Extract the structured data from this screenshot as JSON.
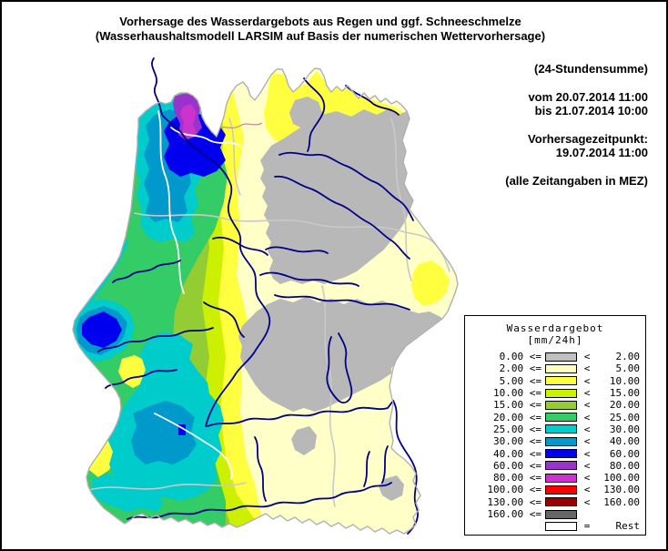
{
  "title": {
    "line1": "Vorhersage des Wasserdargebots aus Regen und ggf. Schneeschmelze",
    "line2": "(Wasserhaushaltsmodell LARSIM auf Basis der numerischen Wettervorhersage)"
  },
  "info": {
    "sum": "(24-Stundensumme)",
    "from": "vom 20.07.2014 11:00",
    "to": "bis 21.07.2014 10:00",
    "forecast_label": "Vorhersagezeitpunkt:",
    "forecast_time": "19.07.2014 11:00",
    "timezone_note": "(alle Zeitangaben in MEZ)"
  },
  "legend": {
    "title": "Wasserdargebot",
    "unit": "[mm/24h]",
    "rows": [
      {
        "left": "0.00 <=",
        "color": "#c0c0c0",
        "op": "<",
        "right": "2.00"
      },
      {
        "left": "2.00 <=",
        "color": "#ffffc0",
        "op": "<",
        "right": "5.00"
      },
      {
        "left": "5.00 <=",
        "color": "#ffff40",
        "op": "<",
        "right": "10.00"
      },
      {
        "left": "10.00 <=",
        "color": "#ccf000",
        "op": "<",
        "right": "15.00"
      },
      {
        "left": "15.00 <=",
        "color": "#94cc33",
        "op": "<",
        "right": "20.00"
      },
      {
        "left": "20.00 <=",
        "color": "#33cc66",
        "op": "<",
        "right": "25.00"
      },
      {
        "left": "25.00 <=",
        "color": "#00cccc",
        "op": "<",
        "right": "30.00"
      },
      {
        "left": "30.00 <=",
        "color": "#0099cc",
        "op": "<",
        "right": "40.00"
      },
      {
        "left": "40.00 <=",
        "color": "#0000ee",
        "op": "<",
        "right": "60.00"
      },
      {
        "left": "60.00 <=",
        "color": "#9933cc",
        "op": "<",
        "right": "80.00"
      },
      {
        "left": "80.00 <=",
        "color": "#cc33cc",
        "op": "<",
        "right": "100.00"
      },
      {
        "left": "100.00 <=",
        "color": "#ff0000",
        "op": "<",
        "right": "130.00"
      },
      {
        "left": "130.00 <=",
        "color": "#990000",
        "op": "<",
        "right": "160.00"
      },
      {
        "left": "160.00 <=",
        "color": "#666666",
        "op": "",
        "right": ""
      },
      {
        "left": "",
        "color": "#ffffff",
        "op": "=",
        "right": "Rest"
      }
    ]
  },
  "map": {
    "region": "Baden-Württemberg",
    "palette": {
      "gray": "#b8b8b8",
      "paleyellow": "#ffffc8",
      "yellow": "#ffff40",
      "chartreuse": "#ccf000",
      "yellowgreen": "#94cc33",
      "green": "#33cc66",
      "cyan": "#00cccc",
      "lightblue": "#0099cc",
      "blue": "#0000ee",
      "purple": "#9933cc",
      "magenta": "#cc33cc",
      "river": "#000088",
      "adminline": "#c9c9c9",
      "stateborder": "#b0b0b0",
      "watershed": "#ffffff",
      "districtline": "#cc8899"
    }
  }
}
